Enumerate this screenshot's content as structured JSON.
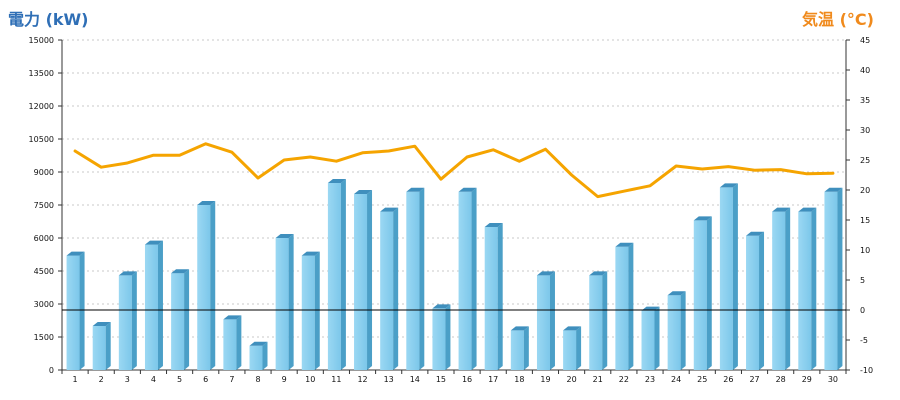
{
  "chart_data": {
    "type": "bar",
    "title_left": "電力 (kW)",
    "title_right": "気温 (°C)",
    "categories": [
      "1",
      "2",
      "3",
      "4",
      "5",
      "6",
      "7",
      "8",
      "9",
      "10",
      "11",
      "12",
      "13",
      "14",
      "15",
      "16",
      "17",
      "18",
      "19",
      "20",
      "21",
      "22",
      "23",
      "24",
      "25",
      "26",
      "27",
      "28",
      "29",
      "30"
    ],
    "left_axis": {
      "min": 0,
      "max": 15000,
      "ticks": [
        0,
        1500,
        3000,
        4500,
        6000,
        7500,
        9000,
        10500,
        12000,
        13500,
        15000
      ]
    },
    "right_axis": {
      "min": -10,
      "max": 45,
      "ticks": [
        -10,
        -5,
        0,
        5,
        10,
        15,
        20,
        25,
        30,
        35,
        40,
        45
      ]
    },
    "series": [
      {
        "type": "bar",
        "axis": "left",
        "color": "#87ceeb",
        "values": [
          5200,
          2000,
          4300,
          5700,
          4400,
          7500,
          2300,
          1100,
          6000,
          5200,
          8500,
          8000,
          7200,
          8100,
          2800,
          8100,
          6500,
          1800,
          4300,
          1800,
          4300,
          5600,
          2700,
          3400,
          6800,
          8300,
          6100,
          7200,
          7200,
          8100
        ]
      },
      {
        "type": "line",
        "axis": "right",
        "color": "#f5a400",
        "values": [
          26.5,
          23.8,
          24.5,
          25.8,
          25.8,
          27.7,
          26.3,
          22,
          25,
          25.5,
          24.8,
          26.2,
          26.5,
          27.3,
          21.8,
          25.5,
          26.7,
          24.8,
          26.8,
          22.5,
          18.9,
          19.8,
          20.7,
          24,
          23.5,
          23.9,
          23.3,
          23.4,
          22.7,
          22.8
        ]
      }
    ],
    "reference_line": {
      "axis": "right",
      "value": 0,
      "color": "#000000"
    },
    "grid": true
  }
}
